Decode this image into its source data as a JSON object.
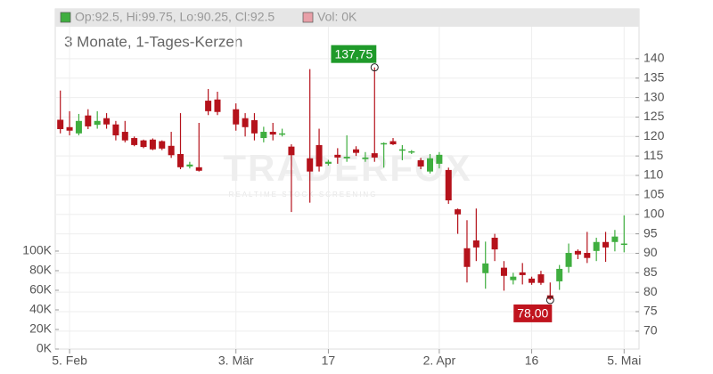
{
  "chart_data": {
    "type": "candlestick",
    "subtitle": "3 Monate, 1-Tages-Kerzen",
    "legend": [
      {
        "name": "Op:92.5, Hi:99.75, Lo:90.25, Cl:92.5",
        "color": "#3fae3f"
      },
      {
        "name": "Vol: 0K",
        "color": "#e8a0a8"
      }
    ],
    "watermark": [
      "TRADERFOX",
      "REALTIME STOCK SCREENING"
    ],
    "categories": [
      null,
      "5. Feb",
      null,
      null,
      null,
      null,
      null,
      null,
      null,
      null,
      null,
      null,
      null,
      null,
      null,
      null,
      null,
      null,
      null,
      "3. Mär",
      null,
      null,
      null,
      null,
      null,
      null,
      null,
      null,
      null,
      "17",
      null,
      null,
      null,
      null,
      null,
      null,
      null,
      null,
      null,
      null,
      null,
      "2. Apr",
      null,
      null,
      null,
      null,
      null,
      null,
      null,
      null,
      null,
      "16",
      null,
      null,
      null,
      null,
      null,
      null,
      null,
      null,
      null,
      "5. Mai"
    ],
    "open": [
      124.3,
      122.4,
      120.8,
      125.4,
      123.0,
      124.7,
      123.1,
      121.2,
      119.6,
      119.0,
      119.2,
      118.8,
      117.6,
      115.5,
      112.3,
      112.1,
      129.2,
      129.5,
      null,
      127.0,
      124.7,
      124.2,
      119.6,
      121.2,
      120.5,
      117.4,
      null,
      114.4,
      117.8,
      113.0,
      115.3,
      114.4,
      116.7,
      114.2,
      115.7,
      118.0,
      118.8,
      116.4,
      116.0,
      113.9,
      111.0,
      113.0,
      111.4,
      101.3,
      91.3,
      93.3,
      84.9,
      94.0,
      86.3,
      83.1,
      85.1,
      83.5,
      84.6,
      79.2,
      82.8,
      86.5,
      90.6,
      90.1,
      90.6,
      92.9,
      92.9,
      92.5
    ],
    "high": [
      131.8,
      126.5,
      125.8,
      127.0,
      126.5,
      126.0,
      124.0,
      124.0,
      120.0,
      119.2,
      119.5,
      119.0,
      121.2,
      126.0,
      113.5,
      123.5,
      132.2,
      131.5,
      null,
      128.5,
      126.0,
      126.0,
      122.5,
      123.5,
      122.0,
      118.0,
      null,
      137.3,
      122.0,
      114.0,
      117.0,
      120.3,
      117.5,
      116.0,
      137.75,
      118.5,
      119.6,
      117.8,
      116.5,
      114.5,
      115.5,
      116.0,
      112.0,
      101.5,
      98.5,
      101.5,
      93.0,
      95.0,
      88.0,
      85.0,
      87.5,
      84.0,
      85.5,
      82.5,
      87.0,
      92.5,
      91.0,
      95.5,
      94.0,
      95.5,
      96.0,
      99.75
    ],
    "low": [
      120.8,
      120.3,
      120.3,
      121.9,
      122.0,
      122.0,
      119.0,
      118.5,
      117.5,
      117.0,
      116.5,
      116.5,
      114.5,
      111.6,
      111.8,
      111.0,
      125.5,
      125.5,
      null,
      121.5,
      120.0,
      119.0,
      118.5,
      119.0,
      120.0,
      100.6,
      null,
      103.0,
      111.0,
      112.5,
      113.0,
      113.5,
      115.0,
      113.5,
      113.5,
      112.0,
      117.8,
      113.9,
      115.5,
      111.6,
      110.5,
      111.8,
      102.7,
      95.0,
      82.5,
      88.0,
      80.9,
      88.0,
      80.4,
      82.0,
      82.0,
      81.9,
      81.9,
      78.0,
      80.6,
      85.0,
      88.5,
      87.5,
      88.0,
      87.8,
      90.5,
      90.25
    ],
    "close": [
      121.9,
      121.5,
      124.0,
      122.6,
      124.0,
      123.1,
      120.3,
      119.0,
      117.8,
      117.3,
      116.7,
      116.9,
      115.2,
      112.1,
      112.8,
      111.2,
      126.5,
      126.3,
      null,
      123.1,
      122.4,
      120.8,
      121.2,
      120.5,
      120.8,
      115.2,
      null,
      111.0,
      112.3,
      113.5,
      114.6,
      114.8,
      115.8,
      114.6,
      114.6,
      118.3,
      118.0,
      116.7,
      116.2,
      112.3,
      114.4,
      115.3,
      103.6,
      100.0,
      86.5,
      91.5,
      87.4,
      91.0,
      84.2,
      84.0,
      84.4,
      82.4,
      82.4,
      78.3,
      86.0,
      90.1,
      89.7,
      88.8,
      92.9,
      91.5,
      94.3,
      92.5
    ],
    "up_color": "#3fae3f",
    "down_color": "#b5121b",
    "annotations": [
      {
        "label": "137,75",
        "value": 137.75,
        "field": "high",
        "color": "#1f9a2a"
      },
      {
        "label": "78,00",
        "value": 78.0,
        "field": "low",
        "color": "#c0141e"
      }
    ],
    "ylim": [
      65.4,
      148.2
    ],
    "yticks": [
      70,
      75,
      80,
      85,
      90,
      95,
      100,
      105,
      110,
      115,
      120,
      125,
      130,
      135,
      140
    ],
    "y2lim": [
      0,
      329000
    ],
    "y2ticks": [
      {
        "value": 0,
        "label": "0K"
      },
      {
        "value": 20000,
        "label": "20K"
      },
      {
        "value": 40000,
        "label": "40K"
      },
      {
        "value": 60000,
        "label": "60K"
      },
      {
        "value": 80000,
        "label": "80K"
      },
      {
        "value": 100000,
        "label": "100K"
      }
    ],
    "grid": true
  }
}
